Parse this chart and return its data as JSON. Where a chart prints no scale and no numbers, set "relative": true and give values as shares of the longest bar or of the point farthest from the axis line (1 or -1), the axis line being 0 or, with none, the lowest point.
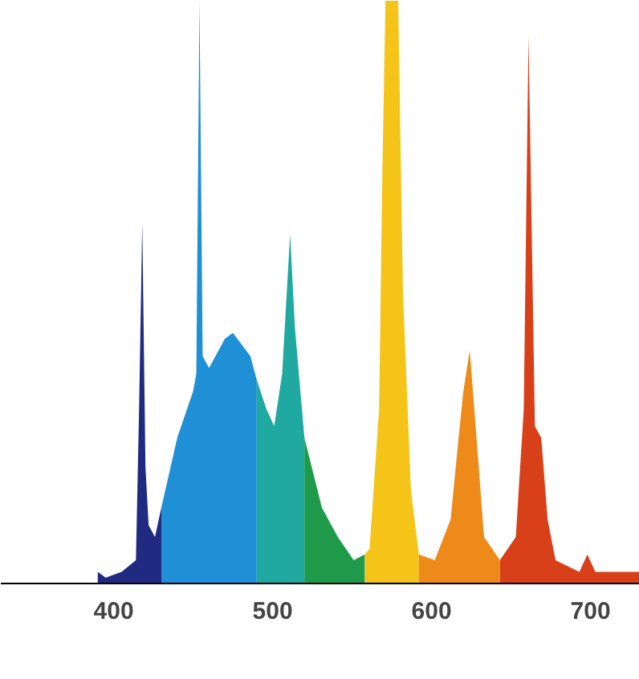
{
  "chart_data": {
    "type": "area",
    "relative": true,
    "xlim": [
      329,
      731
    ],
    "xticks": [
      400,
      500,
      600,
      700
    ],
    "tick_labels": "x",
    "grid": false,
    "series": [
      {
        "color": "#1f2a80",
        "x": [
          390,
          395,
          405,
          414,
          416,
          418,
          420,
          422,
          426,
          430
        ],
        "values": [
          0.02,
          0.01,
          0.02,
          0.04,
          0.3,
          0.62,
          0.2,
          0.1,
          0.08,
          0.13
        ]
      },
      {
        "color": "#1f8fd6",
        "x": [
          430,
          440,
          450,
          452,
          454,
          456,
          460,
          470,
          475,
          486,
          490
        ],
        "values": [
          0.13,
          0.25,
          0.33,
          0.36,
          1,
          0.39,
          0.37,
          0.42,
          0.43,
          0.39,
          0.35
        ]
      },
      {
        "color": "#1fa9a0",
        "x": [
          490,
          496,
          501,
          506,
          511,
          514,
          520
        ],
        "values": [
          0.35,
          0.3,
          0.27,
          0.36,
          0.6,
          0.44,
          0.25
        ]
      },
      {
        "color": "#1e9a4a",
        "x": [
          520,
          531,
          541,
          551,
          558
        ],
        "values": [
          0.25,
          0.13,
          0.08,
          0.04,
          0.05
        ]
      },
      {
        "color": "#f4c518",
        "x": [
          558,
          561,
          567,
          569,
          571,
          579,
          582,
          587,
          592
        ],
        "values": [
          0.05,
          0.06,
          0.3,
          0.7,
          1,
          1,
          0.5,
          0.16,
          0.05
        ]
      },
      {
        "color": "#ee8a1a",
        "x": [
          592,
          602,
          612,
          617,
          620,
          624,
          628,
          633,
          643
        ],
        "values": [
          0.05,
          0.04,
          0.11,
          0.25,
          0.33,
          0.4,
          0.26,
          0.08,
          0.04
        ]
      },
      {
        "color": "#d8401a",
        "x": [
          643,
          653,
          658,
          661,
          665,
          669,
          673,
          678,
          693,
          698,
          703,
          731
        ],
        "values": [
          0.04,
          0.08,
          0.3,
          0.94,
          0.27,
          0.25,
          0.11,
          0.04,
          0.02,
          0.05,
          0.02,
          0.02
        ]
      }
    ]
  }
}
